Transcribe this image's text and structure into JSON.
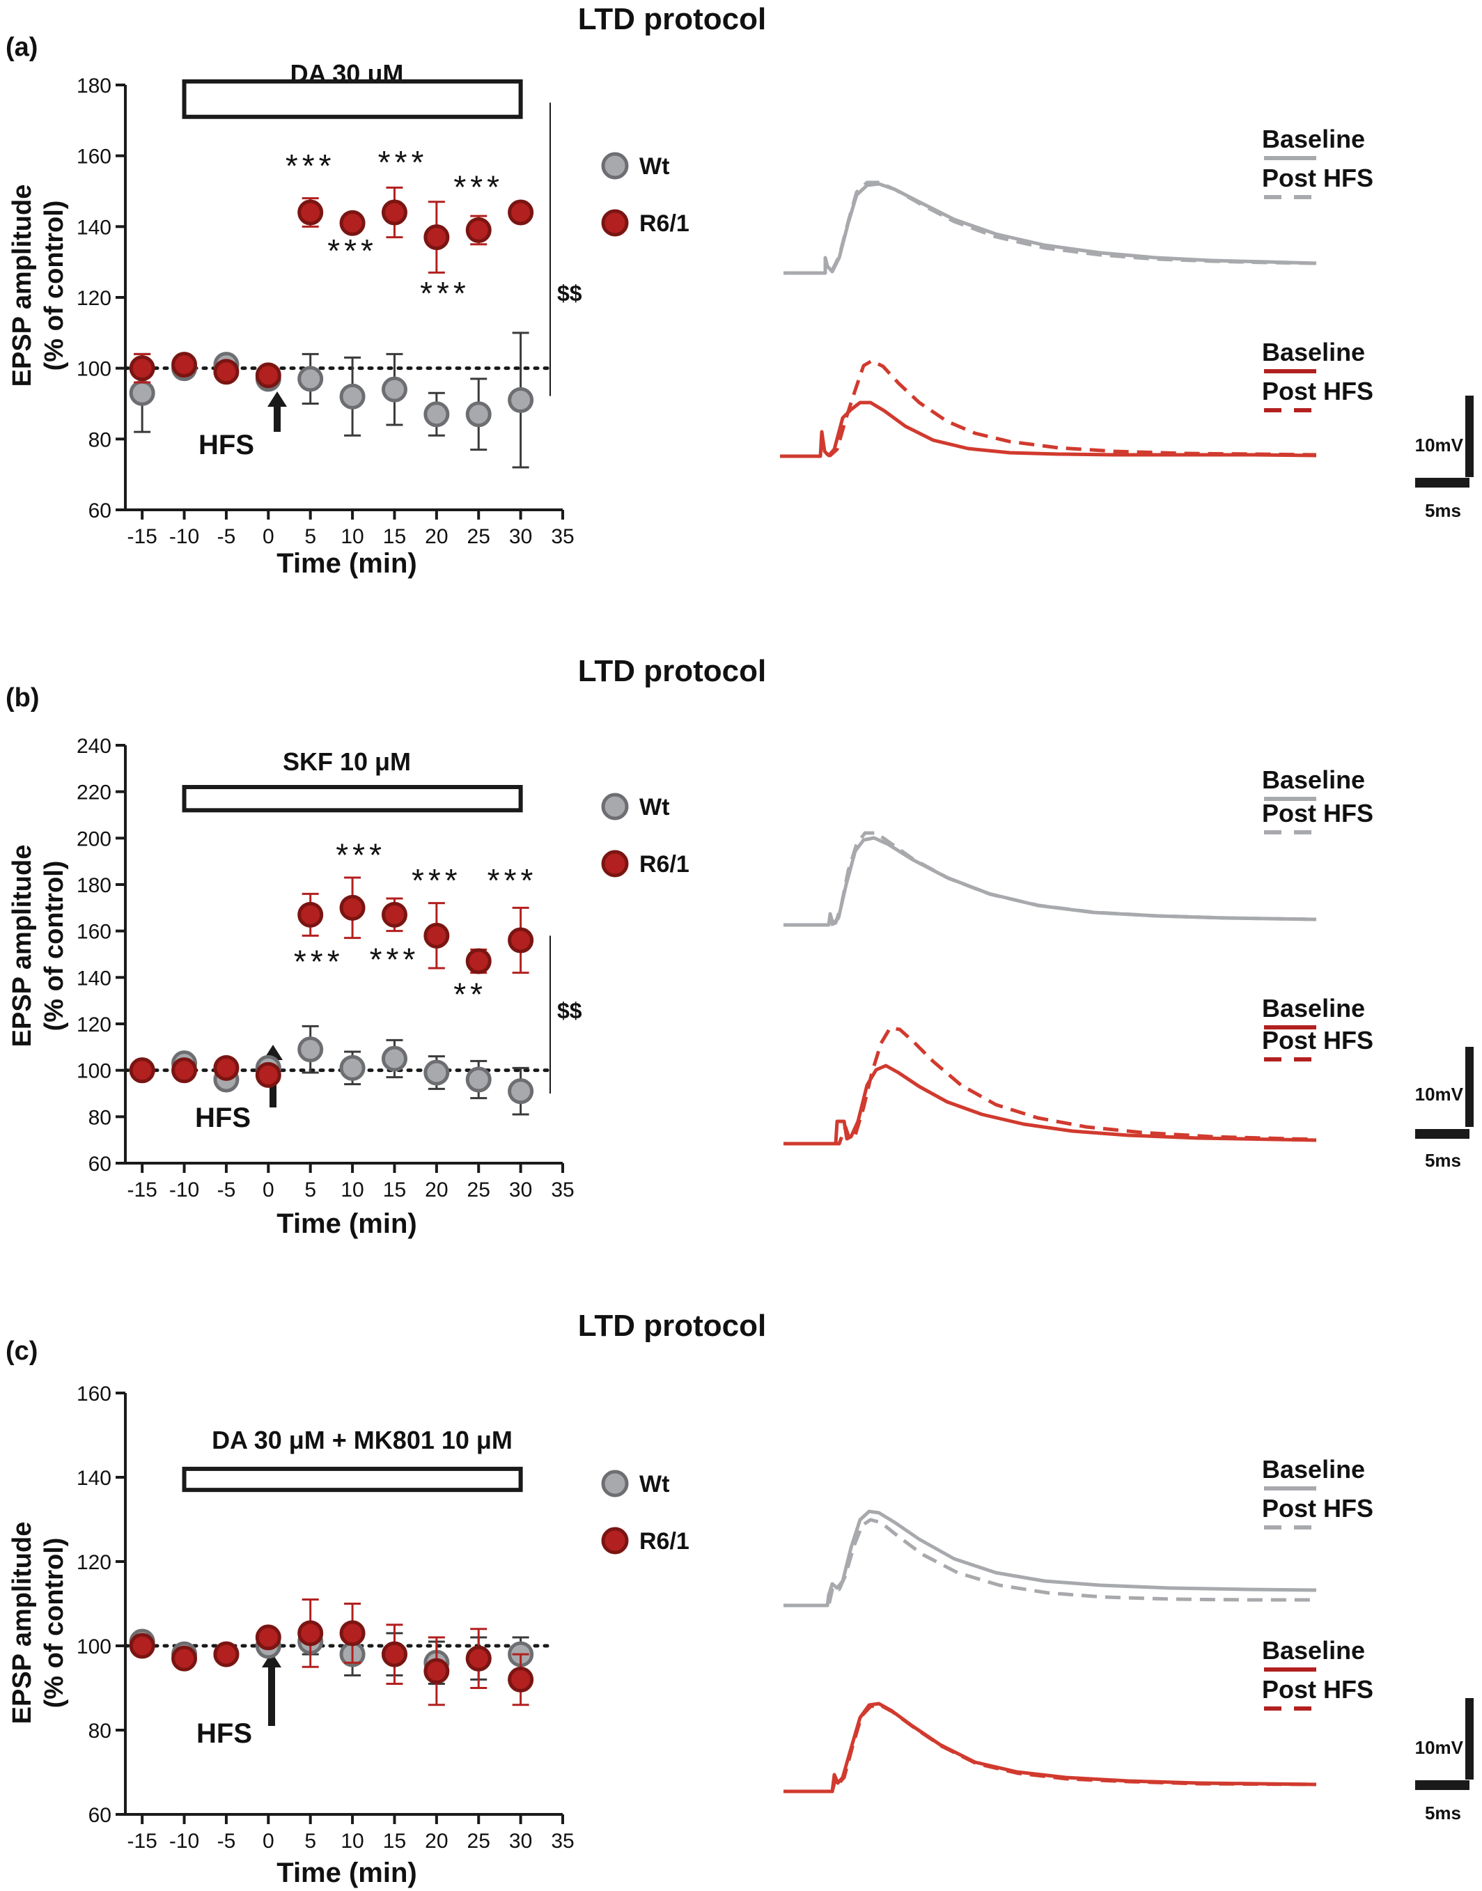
{
  "colors": {
    "wt": "#a7a9ac",
    "wt_edge": "#6d6e71",
    "r61": "#b2201f",
    "r61_dark": "#7a1512",
    "trace_red": "#d13a2e",
    "axis": "#1a1a1a"
  },
  "legend": {
    "wt": "Wt",
    "r61": "R6/1"
  },
  "trace_legend": {
    "baseline": "Baseline",
    "post": "Post HFS"
  },
  "scale_bar": {
    "mv": "10mV",
    "ms": "5ms"
  },
  "chart_data": [
    {
      "type": "scatter",
      "panel": "(a)",
      "title": "LTD protocol",
      "xlabel": "Time (min)",
      "ylabel_line1": "EPSP amplitude",
      "ylabel_line2": "(% of control)",
      "xlim": [
        -17,
        35
      ],
      "ylim": [
        60,
        180
      ],
      "yticks": [
        60,
        80,
        100,
        120,
        140,
        160,
        180
      ],
      "xticks": [
        -15,
        -10,
        -5,
        0,
        5,
        10,
        15,
        20,
        25,
        30,
        35
      ],
      "drug_label": "DA 30 μM",
      "drug_range": [
        -10,
        30
      ],
      "drug_y": [
        171,
        181
      ],
      "hfs_label": "HFS",
      "sig_label": "$$",
      "sig_y_range": [
        100,
        175
      ],
      "stars": [
        {
          "text": "***",
          "x": 5,
          "y": 154
        },
        {
          "text": "***",
          "x": 16,
          "y": 155
        },
        {
          "text": "***",
          "x": 25,
          "y": 148
        },
        {
          "text": "***",
          "x": 10,
          "y": 130
        },
        {
          "text": "***",
          "x": 21,
          "y": 118
        }
      ],
      "series": [
        {
          "name": "Wt",
          "x": [
            -15,
            -10,
            -5,
            0,
            5,
            10,
            15,
            20,
            25,
            30
          ],
          "y": [
            93,
            100,
            101,
            97,
            97,
            92,
            94,
            87,
            87,
            91
          ],
          "err": [
            11,
            1,
            1,
            2,
            7,
            11,
            10,
            6,
            10,
            19
          ]
        },
        {
          "name": "R6/1",
          "x": [
            -15,
            -10,
            -5,
            0,
            5,
            10,
            15,
            20,
            25,
            30
          ],
          "y": [
            100,
            101,
            99,
            98,
            144,
            141,
            144,
            137,
            139,
            144
          ],
          "err": [
            4,
            1,
            1,
            1,
            4,
            1,
            7,
            10,
            4,
            1
          ]
        }
      ]
    },
    {
      "type": "scatter",
      "panel": "(b)",
      "title": "LTD protocol",
      "xlabel": "Time (min)",
      "ylabel_line1": "EPSP amplitude",
      "ylabel_line2": "(% of control)",
      "xlim": [
        -17,
        35
      ],
      "ylim": [
        60,
        240
      ],
      "yticks": [
        60,
        80,
        100,
        120,
        140,
        160,
        180,
        200,
        220,
        240
      ],
      "xticks": [
        -15,
        -10,
        -5,
        0,
        5,
        10,
        15,
        20,
        25,
        30,
        35
      ],
      "drug_label": "SKF 10 μM",
      "drug_range": [
        -10,
        30
      ],
      "drug_y": [
        212,
        222
      ],
      "hfs_label": "HFS",
      "sig_label": "$$",
      "sig_y_range": [
        90,
        158
      ],
      "stars": [
        {
          "text": "***",
          "x": 11,
          "y": 188
        },
        {
          "text": "***",
          "x": 20,
          "y": 177
        },
        {
          "text": "***",
          "x": 29,
          "y": 177
        },
        {
          "text": "***",
          "x": 6,
          "y": 142
        },
        {
          "text": "***",
          "x": 15,
          "y": 143
        },
        {
          "text": "**",
          "x": 24,
          "y": 128
        }
      ],
      "series": [
        {
          "name": "Wt",
          "x": [
            -15,
            -10,
            -5,
            0,
            5,
            10,
            15,
            20,
            25,
            30
          ],
          "y": [
            100,
            103,
            96,
            101,
            109,
            101,
            105,
            99,
            96,
            91
          ],
          "err": [
            1,
            2,
            2,
            2,
            10,
            7,
            8,
            7,
            8,
            10
          ]
        },
        {
          "name": "R6/1",
          "x": [
            -15,
            -10,
            -5,
            0,
            5,
            10,
            15,
            20,
            25,
            30
          ],
          "y": [
            100,
            100,
            101,
            98,
            167,
            170,
            167,
            158,
            147,
            156
          ],
          "err": [
            1,
            1,
            1,
            1,
            9,
            13,
            7,
            14,
            5,
            14
          ]
        }
      ]
    },
    {
      "type": "scatter",
      "panel": "(c)",
      "title": "LTD protocol",
      "xlabel": "Time (min)",
      "ylabel_line1": "EPSP amplitude",
      "ylabel_line2": "(% of control)",
      "xlim": [
        -17,
        35
      ],
      "ylim": [
        60,
        160
      ],
      "yticks": [
        60,
        80,
        100,
        120,
        140,
        160
      ],
      "xticks": [
        -15,
        -10,
        -5,
        0,
        5,
        10,
        15,
        20,
        25,
        30,
        35
      ],
      "drug_label": "DA 30 μM + MK801 10 μM",
      "drug_range": [
        -10,
        30
      ],
      "drug_y": [
        137,
        142
      ],
      "hfs_label": "HFS",
      "sig_label": "",
      "sig_y_range": null,
      "stars": [],
      "series": [
        {
          "name": "Wt",
          "x": [
            -15,
            -10,
            -5,
            0,
            5,
            10,
            15,
            20,
            25,
            30
          ],
          "y": [
            101,
            98,
            98,
            100,
            101,
            98,
            98,
            96,
            97,
            98
          ],
          "err": [
            1,
            1,
            1,
            1,
            3,
            5,
            5,
            5,
            5,
            4
          ]
        },
        {
          "name": "R6/1",
          "x": [
            -15,
            -10,
            -5,
            0,
            5,
            10,
            15,
            20,
            25,
            30
          ],
          "y": [
            100,
            97,
            98,
            102,
            103,
            103,
            98,
            94,
            97,
            92
          ],
          "err": [
            1,
            2,
            1,
            2,
            8,
            7,
            7,
            8,
            7,
            6
          ]
        }
      ]
    }
  ]
}
